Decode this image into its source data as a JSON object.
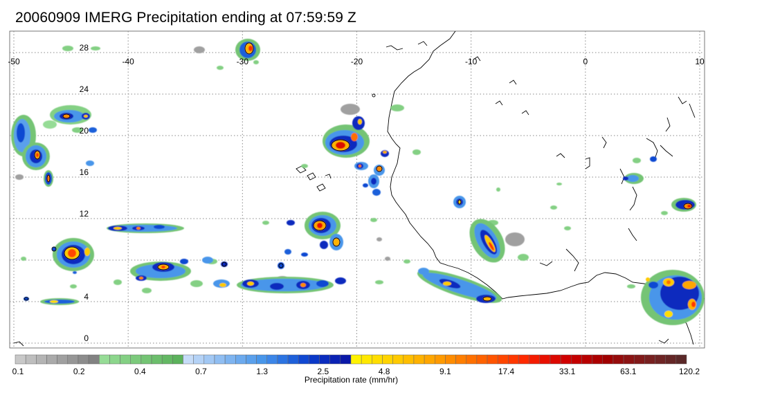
{
  "title": "20060909 IMERG Precipitation ending at 07:59:59 Z",
  "map": {
    "lon_range": [
      -50,
      10
    ],
    "lat_range": [
      -1,
      30
    ],
    "lon_ticks": [
      {
        "value": -50,
        "label": "-50"
      },
      {
        "value": -40,
        "label": "-40"
      },
      {
        "value": -30,
        "label": "-30"
      },
      {
        "value": -20,
        "label": "-20"
      },
      {
        "value": -10,
        "label": "-10"
      },
      {
        "value": 0,
        "label": "0"
      },
      {
        "value": 10,
        "label": "10"
      }
    ],
    "lat_ticks": [
      {
        "value": 0,
        "label": "0"
      },
      {
        "value": 4,
        "label": "4"
      },
      {
        "value": 8,
        "label": ""
      },
      {
        "value": 12,
        "label": "12"
      },
      {
        "value": 16,
        "label": "16"
      },
      {
        "value": 20,
        "label": "20"
      },
      {
        "value": 24,
        "label": "24"
      },
      {
        "value": 28,
        "label": "28"
      }
    ],
    "gridlines": true,
    "coastline": "West Africa",
    "precip_cells": [
      {
        "lon": -49.0,
        "lat": 21.5,
        "max_rate": 9.1
      },
      {
        "lon": -46.5,
        "lat": 18.8,
        "max_rate": 17.4
      },
      {
        "lon": -45.2,
        "lat": 16.3,
        "max_rate": 17.4
      },
      {
        "lon": -42.3,
        "lat": 22.5,
        "max_rate": 17.4
      },
      {
        "lon": -41.5,
        "lat": 22.2,
        "max_rate": 9.1
      },
      {
        "lon": -38.7,
        "lat": 22.0,
        "max_rate": 9.1
      },
      {
        "lon": -43.7,
        "lat": 10.1,
        "max_rate": 33.1
      },
      {
        "lon": -37.5,
        "lat": 11.6,
        "max_rate": 9.1
      },
      {
        "lon": -34.0,
        "lat": 11.6,
        "max_rate": 9.1
      },
      {
        "lon": -36.0,
        "lat": 8.2,
        "max_rate": 9.1
      },
      {
        "lon": -33.3,
        "lat": 8.8,
        "max_rate": 17.4
      },
      {
        "lon": -31.5,
        "lat": 7.0,
        "max_rate": 9.1
      },
      {
        "lon": -27.5,
        "lat": 6.6,
        "max_rate": 4.8
      },
      {
        "lon": -23.5,
        "lat": 6.6,
        "max_rate": 9.1
      },
      {
        "lon": -43.5,
        "lat": 4.2,
        "max_rate": 4.8
      },
      {
        "lon": -30.0,
        "lat": 29.0,
        "max_rate": 17.4
      },
      {
        "lon": -21.5,
        "lat": 19.6,
        "max_rate": 33.1
      },
      {
        "lon": -20.0,
        "lat": 20.6,
        "max_rate": 17.4
      },
      {
        "lon": -19.5,
        "lat": 17.2,
        "max_rate": 9.1
      },
      {
        "lon": -17.5,
        "lat": 16.8,
        "max_rate": 9.1
      },
      {
        "lon": -17.7,
        "lat": 15.3,
        "max_rate": 9.1
      },
      {
        "lon": -22.8,
        "lat": 12.0,
        "max_rate": 33.1
      },
      {
        "lon": -21.5,
        "lat": 11.8,
        "max_rate": 17.4
      },
      {
        "lon": -21.3,
        "lat": 10.7,
        "max_rate": 17.4
      },
      {
        "lon": -20.6,
        "lat": 12.0,
        "max_rate": 9.1
      },
      {
        "lon": -11.2,
        "lat": 13.7,
        "max_rate": 4.8
      },
      {
        "lon": -8.8,
        "lat": 10.2,
        "max_rate": 33.1
      },
      {
        "lon": -12.0,
        "lat": 5.8,
        "max_rate": 9.1
      },
      {
        "lon": -8.3,
        "lat": 4.5,
        "max_rate": 9.1
      },
      {
        "lon": -3.0,
        "lat": 16.0,
        "max_rate": 4.8
      },
      {
        "lon": 6.5,
        "lat": 17.2,
        "max_rate": 4.8
      },
      {
        "lon": 9.3,
        "lat": 13.4,
        "max_rate": 17.4
      },
      {
        "lon": 8.5,
        "lat": 6.2,
        "max_rate": 17.4
      },
      {
        "lon": 9.6,
        "lat": 3.8,
        "max_rate": 17.4
      },
      {
        "lon": 7.2,
        "lat": 4.2,
        "max_rate": 9.1
      }
    ]
  },
  "colorbar": {
    "title": "Precipitation rate (mm/hr)",
    "tick_labels": [
      "0.1",
      "0.2",
      "0.4",
      "0.7",
      "1.3",
      "2.5",
      "4.8",
      "9.1",
      "17.4",
      "33.1",
      "63.1",
      "120.2"
    ],
    "colors": [
      "#c8c8c8",
      "#bebebe",
      "#b4b4b4",
      "#aaaaaa",
      "#a0a0a0",
      "#969696",
      "#8c8c8c",
      "#828282",
      "#96dc96",
      "#8cd68c",
      "#84d084",
      "#7cca7c",
      "#74c474",
      "#6cbe6c",
      "#64b864",
      "#5cb25c",
      "#c6dcf8",
      "#b4d2f6",
      "#a2c8f4",
      "#90bef2",
      "#7eb4f0",
      "#6caaee",
      "#5aa0ec",
      "#4896ea",
      "#3c86e8",
      "#2c74e2",
      "#1e60da",
      "#1048d2",
      "#0a38c8",
      "#0a2cbe",
      "#0a22b4",
      "#0a18a8",
      "#fff200",
      "#ffe800",
      "#ffde00",
      "#ffd400",
      "#ffca00",
      "#ffbe00",
      "#ffb200",
      "#ffa600",
      "#ff9a00",
      "#ff8c00",
      "#ff7e00",
      "#ff7000",
      "#ff6200",
      "#ff5400",
      "#ff4600",
      "#ff3800",
      "#ff2a00",
      "#f41c00",
      "#e81000",
      "#dc0800",
      "#d00000",
      "#c40000",
      "#b80000",
      "#ac0000",
      "#a00000",
      "#960c0c",
      "#8c1414",
      "#821a1a",
      "#782020",
      "#6e2424",
      "#642626",
      "#5a2828"
    ]
  }
}
